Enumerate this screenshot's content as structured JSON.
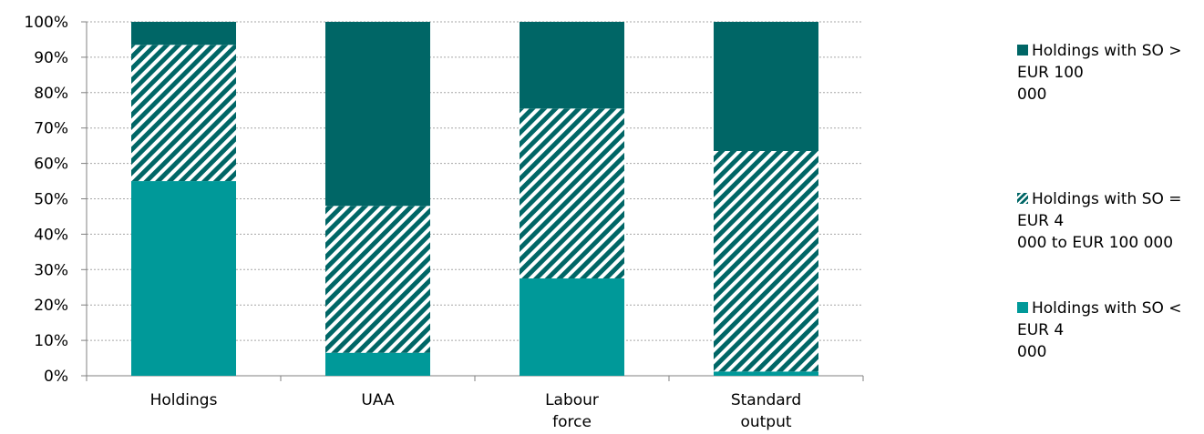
{
  "chart_data": {
    "type": "bar",
    "stacked": true,
    "percent": true,
    "categories": [
      "Holdings",
      "UAA",
      "Labour force",
      "Standard output"
    ],
    "category_label_lines": [
      [
        "Holdings"
      ],
      [
        "UAA"
      ],
      [
        "Labour",
        "force"
      ],
      [
        "Standard",
        "output"
      ]
    ],
    "series": [
      {
        "name": "Holdings with SO < EUR 4 000",
        "values": [
          55,
          6.5,
          27.5,
          1.2
        ],
        "color": "#009999",
        "pattern": "solid"
      },
      {
        "name": "Holdings with SO = EUR 4 000 to EUR 100 000",
        "values": [
          38.5,
          41.5,
          48,
          62.3
        ],
        "color": "#006666",
        "pattern": "diagonal-stripes"
      },
      {
        "name": "Holdings with SO > EUR 100 000",
        "values": [
          6.5,
          52,
          24.5,
          36.5
        ],
        "color": "#006666",
        "pattern": "solid"
      }
    ],
    "ylim": [
      0,
      100
    ],
    "yticks": [
      "0%",
      "10%",
      "20%",
      "30%",
      "40%",
      "50%",
      "60%",
      "70%",
      "80%",
      "90%",
      "100%"
    ],
    "grid": true,
    "legend_position": "right",
    "legend_order": [
      2,
      1,
      0
    ],
    "legend_lines": [
      [
        "Holdings with SO > EUR 100",
        "000"
      ],
      [
        "Holdings with SO = EUR 4",
        "000 to EUR 100 000"
      ],
      [
        "Holdings with SO < EUR 4",
        "000"
      ]
    ]
  }
}
